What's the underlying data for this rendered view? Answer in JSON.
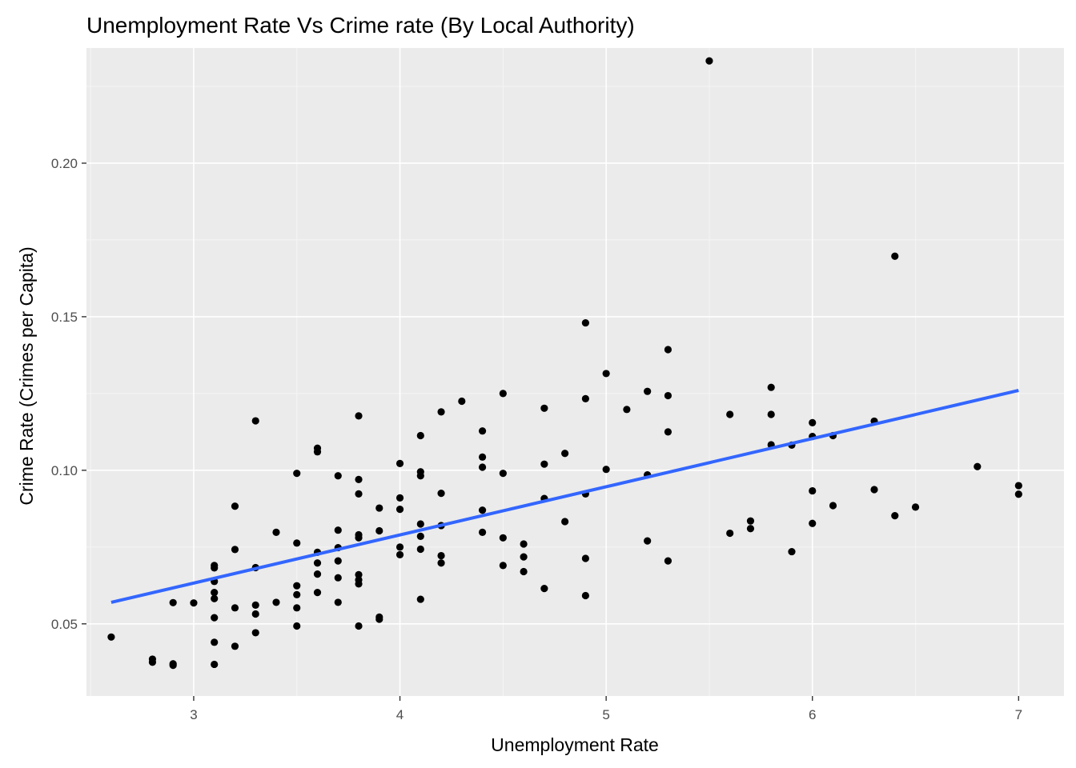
{
  "chart_data": {
    "type": "scatter",
    "title": "Unemployment Rate Vs Crime rate (By Local Authority)",
    "xlabel": "Unemployment Rate",
    "ylabel": "Crime Rate (Crimes per Capita)",
    "xlim": [
      2.48,
      7.22
    ],
    "ylim": [
      0.0265,
      0.2375
    ],
    "x_ticks": [
      3,
      4,
      5,
      6,
      7
    ],
    "x_tick_labels": [
      "3",
      "4",
      "5",
      "6",
      "7"
    ],
    "y_ticks": [
      0.05,
      0.1,
      0.15,
      0.2
    ],
    "y_tick_labels": [
      "0.05",
      "0.10",
      "0.15",
      "0.20"
    ],
    "grid": true,
    "colors": {
      "panel_background": "#ebebeb",
      "grid_major": "#ffffff",
      "grid_minor": "#f5f5f5",
      "points": "#000000",
      "trend_line": "#3366ff",
      "tick_label": "#4d4d4d"
    },
    "points": [
      [
        2.6,
        0.0457
      ],
      [
        2.8,
        0.0385
      ],
      [
        2.8,
        0.0375
      ],
      [
        2.9,
        0.0569
      ],
      [
        2.9,
        0.037
      ],
      [
        2.9,
        0.0365
      ],
      [
        3.0,
        0.0568
      ],
      [
        3.1,
        0.069
      ],
      [
        3.1,
        0.0682
      ],
      [
        3.1,
        0.0638
      ],
      [
        3.1,
        0.0602
      ],
      [
        3.1,
        0.0582
      ],
      [
        3.1,
        0.052
      ],
      [
        3.1,
        0.044
      ],
      [
        3.1,
        0.0368
      ],
      [
        3.2,
        0.0883
      ],
      [
        3.2,
        0.0742
      ],
      [
        3.2,
        0.0552
      ],
      [
        3.2,
        0.0427
      ],
      [
        3.3,
        0.1161
      ],
      [
        3.3,
        0.0683
      ],
      [
        3.3,
        0.0561
      ],
      [
        3.3,
        0.0532
      ],
      [
        3.3,
        0.0471
      ],
      [
        3.4,
        0.0798
      ],
      [
        3.4,
        0.057
      ],
      [
        3.5,
        0.099
      ],
      [
        3.5,
        0.0763
      ],
      [
        3.5,
        0.0624
      ],
      [
        3.5,
        0.0595
      ],
      [
        3.5,
        0.0552
      ],
      [
        3.5,
        0.0493
      ],
      [
        3.6,
        0.1072
      ],
      [
        3.6,
        0.106
      ],
      [
        3.6,
        0.0733
      ],
      [
        3.6,
        0.0698
      ],
      [
        3.6,
        0.0662
      ],
      [
        3.6,
        0.0602
      ],
      [
        3.7,
        0.0982
      ],
      [
        3.7,
        0.0805
      ],
      [
        3.7,
        0.0748
      ],
      [
        3.7,
        0.0705
      ],
      [
        3.7,
        0.065
      ],
      [
        3.7,
        0.057
      ],
      [
        3.8,
        0.1177
      ],
      [
        3.8,
        0.097
      ],
      [
        3.8,
        0.0923
      ],
      [
        3.8,
        0.079
      ],
      [
        3.8,
        0.078
      ],
      [
        3.8,
        0.066
      ],
      [
        3.8,
        0.0643
      ],
      [
        3.8,
        0.063
      ],
      [
        3.8,
        0.0493
      ],
      [
        3.9,
        0.0877
      ],
      [
        3.9,
        0.0803
      ],
      [
        3.9,
        0.0522
      ],
      [
        3.9,
        0.0515
      ],
      [
        4.0,
        0.1022
      ],
      [
        4.0,
        0.091
      ],
      [
        4.0,
        0.0873
      ],
      [
        4.0,
        0.075
      ],
      [
        4.0,
        0.0725
      ],
      [
        4.1,
        0.1113
      ],
      [
        4.1,
        0.0995
      ],
      [
        4.1,
        0.0982
      ],
      [
        4.1,
        0.0825
      ],
      [
        4.1,
        0.0785
      ],
      [
        4.1,
        0.0743
      ],
      [
        4.1,
        0.058
      ],
      [
        4.2,
        0.119
      ],
      [
        4.2,
        0.0925
      ],
      [
        4.2,
        0.082
      ],
      [
        4.2,
        0.0722
      ],
      [
        4.2,
        0.0698
      ],
      [
        4.3,
        0.1225
      ],
      [
        4.4,
        0.1128
      ],
      [
        4.4,
        0.1043
      ],
      [
        4.4,
        0.101
      ],
      [
        4.4,
        0.087
      ],
      [
        4.4,
        0.0798
      ],
      [
        4.5,
        0.125
      ],
      [
        4.5,
        0.099
      ],
      [
        4.5,
        0.078
      ],
      [
        4.5,
        0.069
      ],
      [
        4.6,
        0.076
      ],
      [
        4.6,
        0.0718
      ],
      [
        4.6,
        0.067
      ],
      [
        4.7,
        0.1202
      ],
      [
        4.7,
        0.102
      ],
      [
        4.7,
        0.0908
      ],
      [
        4.7,
        0.0615
      ],
      [
        4.8,
        0.1055
      ],
      [
        4.8,
        0.0833
      ],
      [
        4.9,
        0.148
      ],
      [
        4.9,
        0.1233
      ],
      [
        4.9,
        0.0923
      ],
      [
        4.9,
        0.0713
      ],
      [
        4.9,
        0.0592
      ],
      [
        5.0,
        0.1315
      ],
      [
        5.0,
        0.1003
      ],
      [
        5.1,
        0.1198
      ],
      [
        5.2,
        0.1257
      ],
      [
        5.2,
        0.0985
      ],
      [
        5.2,
        0.077
      ],
      [
        5.3,
        0.1393
      ],
      [
        5.3,
        0.1243
      ],
      [
        5.3,
        0.1125
      ],
      [
        5.3,
        0.0705
      ],
      [
        5.5,
        0.2333
      ],
      [
        5.6,
        0.1182
      ],
      [
        5.6,
        0.0795
      ],
      [
        5.7,
        0.0835
      ],
      [
        5.7,
        0.081
      ],
      [
        5.8,
        0.127
      ],
      [
        5.8,
        0.1182
      ],
      [
        5.8,
        0.1083
      ],
      [
        5.9,
        0.1082
      ],
      [
        5.9,
        0.0735
      ],
      [
        6.0,
        0.1155
      ],
      [
        6.0,
        0.111
      ],
      [
        6.0,
        0.0933
      ],
      [
        6.0,
        0.0827
      ],
      [
        6.1,
        0.1113
      ],
      [
        6.1,
        0.0885
      ],
      [
        6.3,
        0.116
      ],
      [
        6.3,
        0.0937
      ],
      [
        6.4,
        0.1697
      ],
      [
        6.4,
        0.0852
      ],
      [
        6.5,
        0.088
      ],
      [
        6.8,
        0.1012
      ],
      [
        7.0,
        0.095
      ],
      [
        7.0,
        0.0922
      ]
    ],
    "trend_line": {
      "method": "linear",
      "x": [
        2.6,
        7.0
      ],
      "y": [
        0.057,
        0.126
      ]
    }
  }
}
